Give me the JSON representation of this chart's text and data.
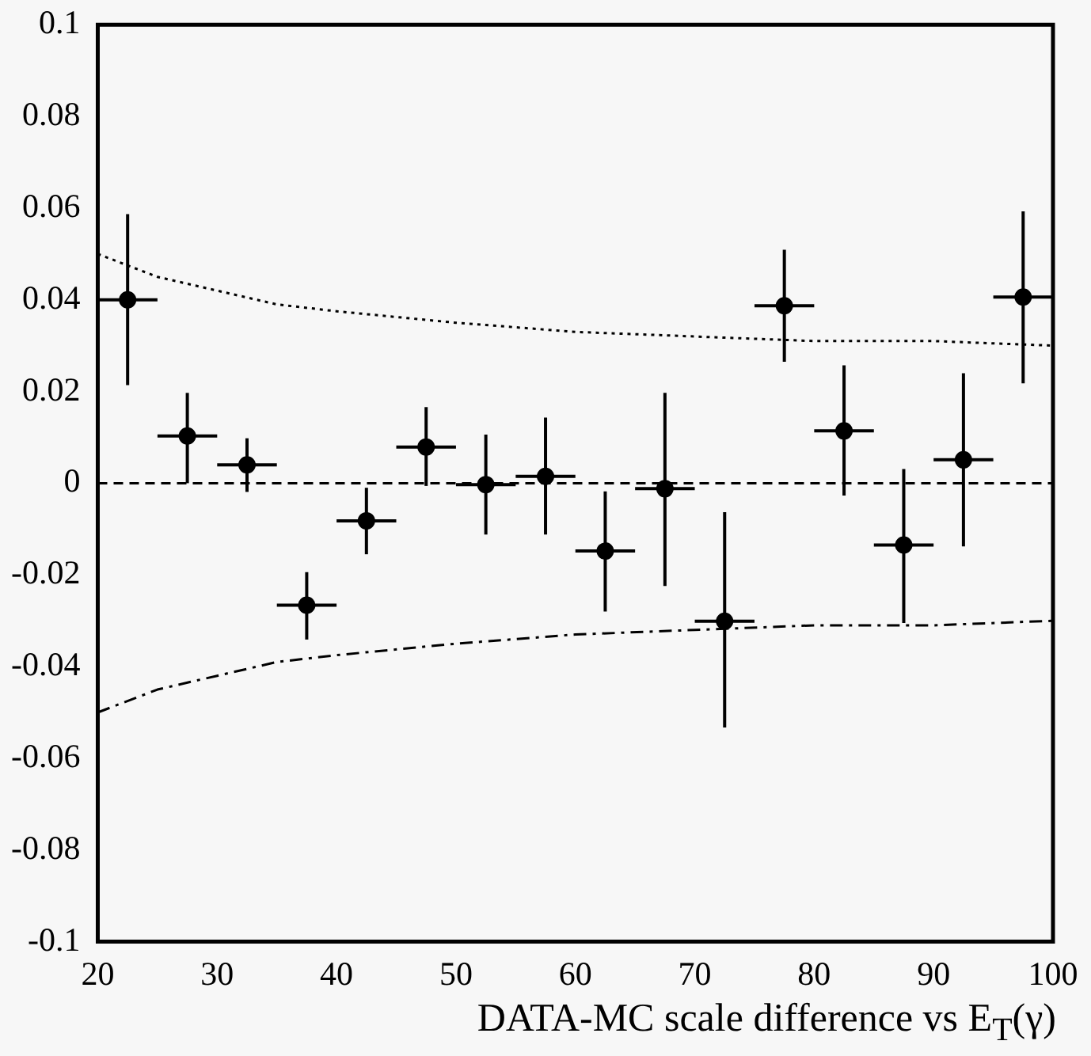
{
  "chart_data": {
    "type": "scatter",
    "xlabel": "DATA-MC scale difference vs E$_{T}$(γ)",
    "xlim": [
      20,
      100
    ],
    "xticks": [
      20,
      30,
      40,
      50,
      60,
      70,
      80,
      90,
      100
    ],
    "ylim": [
      -0.1,
      0.1
    ],
    "yticks": [
      -0.1,
      -0.08,
      -0.06,
      -0.04,
      -0.02,
      0,
      0.02,
      0.04,
      0.06,
      0.08,
      0.1
    ],
    "grid": false,
    "legend": false,
    "marker": "circle",
    "ref_lines": [
      {
        "axis": "y",
        "value": 0,
        "color": "#000000",
        "line_style": "dashed"
      }
    ],
    "series": [
      {
        "color": "#000000",
        "x": [
          22.5,
          27.5,
          32.5,
          37.5,
          42.5,
          47.5,
          52.5,
          57.5,
          62.5,
          67.5,
          72.5,
          77.5,
          82.5,
          87.5,
          92.5,
          97.5
        ],
        "values": [
          0.04,
          0.0103,
          0.004,
          -0.0266,
          -0.0082,
          0.0079,
          -0.0003,
          0.0015,
          -0.0148,
          -0.0012,
          -0.0301,
          0.0387,
          0.0114,
          -0.0135,
          0.0051,
          0.0406
        ],
        "errors": [
          [
            0.0214,
            0.0587
          ],
          [
            0.0,
            0.0197
          ],
          [
            -0.0019,
            0.0098
          ],
          [
            -0.0341,
            -0.0194
          ],
          [
            -0.0155,
            -0.001
          ],
          [
            -0.0006,
            0.0166
          ],
          [
            -0.0112,
            0.0106
          ],
          [
            -0.0112,
            0.0143
          ],
          [
            -0.028,
            -0.0018
          ],
          [
            -0.0224,
            0.0197
          ],
          [
            -0.0533,
            -0.0063
          ],
          [
            0.0265,
            0.0509
          ],
          [
            -0.0027,
            0.0257
          ],
          [
            -0.0305,
            0.0031
          ],
          [
            -0.0138,
            0.024
          ],
          [
            0.0218,
            0.0593
          ]
        ],
        "xerrors": [
          2.5,
          2.5,
          2.5,
          2.5,
          2.5,
          2.5,
          2.5,
          2.5,
          2.5,
          2.5,
          2.5,
          2.5,
          2.5,
          2.5,
          2.5,
          2.5
        ]
      },
      {
        "type": "line",
        "color": "#000000",
        "marker": "none",
        "line_style": "dotted",
        "x": [
          20,
          25,
          30,
          35,
          40,
          50,
          60,
          70,
          80,
          90,
          100
        ],
        "values": [
          0.05,
          0.045,
          0.042,
          0.039,
          0.0375,
          0.035,
          0.033,
          0.032,
          0.031,
          0.031,
          0.03
        ]
      },
      {
        "type": "line",
        "color": "#000000",
        "marker": "none",
        "line_style": "dashed",
        "x": [
          20,
          25,
          30,
          35,
          40,
          50,
          60,
          70,
          80,
          90,
          100
        ],
        "values": [
          -0.05,
          -0.045,
          -0.042,
          -0.039,
          -0.0375,
          -0.035,
          -0.033,
          -0.032,
          -0.031,
          -0.031,
          -0.03
        ]
      }
    ]
  }
}
